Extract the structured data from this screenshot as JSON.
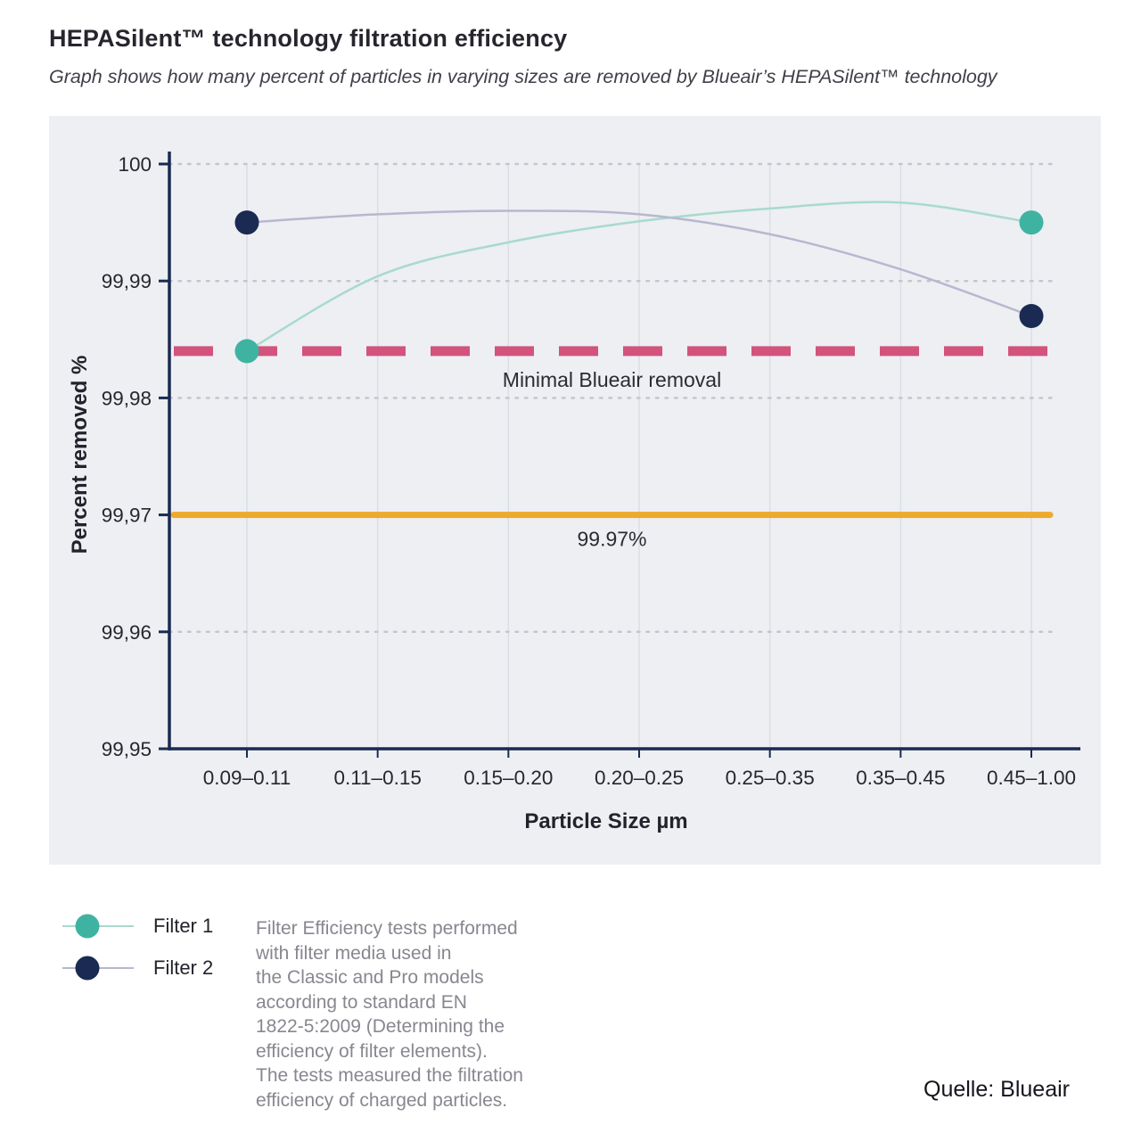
{
  "header": {
    "title": "HEPASilent™ technology filtration efficiency",
    "subtitle": "Graph shows how many percent of particles in varying sizes are removed by Blueair’s HEPASilent™ technology"
  },
  "chart_data": {
    "type": "line",
    "title": "",
    "xlabel": "Particle Size µm",
    "ylabel": "Percent removed %",
    "ylim": [
      99.95,
      100
    ],
    "plot_bg": "#edeff3",
    "grid": true,
    "legend_position": "bottom-left",
    "categories": [
      "0.09–0.11",
      "0.11–0.15",
      "0.15–0.20",
      "0.20–0.25",
      "0.25–0.35",
      "0.35–0.45",
      "0.45–1.00"
    ],
    "yticks": [
      {
        "label": "100",
        "value": 100
      },
      {
        "label": "99,99",
        "value": 99.99
      },
      {
        "label": "99,98",
        "value": 99.98
      },
      {
        "label": "99,97",
        "value": 99.97
      },
      {
        "label": "99,96",
        "value": 99.96
      },
      {
        "label": "99,95",
        "value": 99.95
      }
    ],
    "series": [
      {
        "name": "Filter 1",
        "marker_color": "#3fb3a2",
        "line_color": "#a9d9cf",
        "values": [
          99.984,
          99.9904,
          99.9933,
          99.9951,
          99.9962,
          99.9967,
          99.995
        ],
        "marker_points": [
          0,
          6
        ]
      },
      {
        "name": "Filter 2",
        "marker_color": "#1b2a52",
        "line_color": "#b7b7cf",
        "values": [
          99.995,
          99.9957,
          99.996,
          99.9957,
          99.994,
          99.991,
          99.987
        ],
        "marker_points": [
          0,
          6
        ]
      }
    ],
    "reference_lines": [
      {
        "label": "Minimal Blueair removal",
        "value": 99.984,
        "color": "#d2537c",
        "style": "dashed"
      },
      {
        "label": "99.97%",
        "value": 99.97,
        "color": "#edaa2b",
        "style": "solid"
      }
    ]
  },
  "note": {
    "text": "Filter Efficiency tests performed\nwith filter media used in\nthe Classic and Pro models\naccording to standard EN\n1822-5:2009 (Determining the\nefficiency of filter elements).\nThe tests measured the filtration\nefficiency of charged particles."
  },
  "source": {
    "label": "Quelle: Blueair"
  }
}
